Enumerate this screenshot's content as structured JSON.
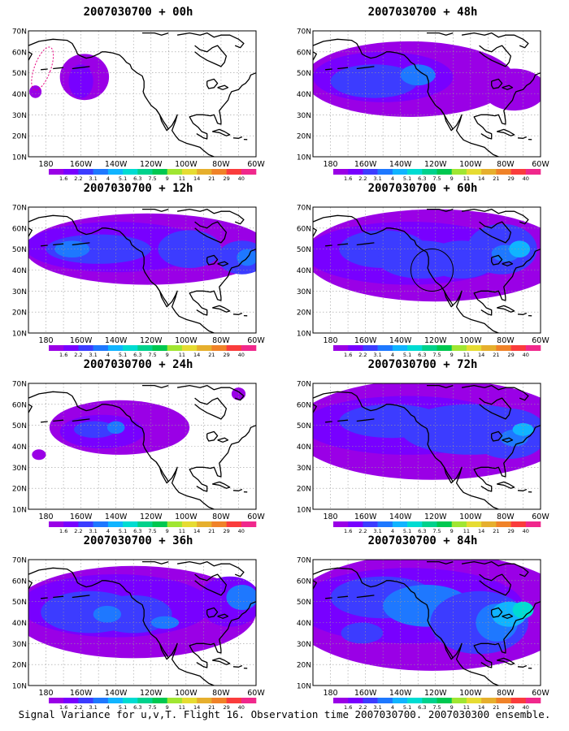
{
  "map": {
    "lat_ticks": [
      "70N",
      "60N",
      "50N",
      "40N",
      "30N",
      "20N",
      "10N"
    ],
    "lon_ticks": [
      "180",
      "160W",
      "140W",
      "120W",
      "100W",
      "80W",
      "60W"
    ],
    "colorbar": {
      "labels": [
        "1.6",
        "2.2",
        "3.1",
        "4",
        "5.1",
        "6.3",
        "7.5",
        "9",
        "11",
        "14",
        "21",
        "29",
        "40"
      ],
      "colors": [
        "#9a00e6",
        "#7800ff",
        "#3c3cff",
        "#1e78ff",
        "#10b4ff",
        "#00dcd2",
        "#00d28c",
        "#00c850",
        "#a0e632",
        "#e6dc32",
        "#e6af2d",
        "#f08228",
        "#fa3c3c",
        "#f0288c"
      ]
    },
    "land_fill": "#ffffff",
    "grid_style": "dotted"
  },
  "panels": [
    {
      "title": "2007030700 + 00h",
      "col": 0,
      "row": 0,
      "level": 0
    },
    {
      "title": "2007030700 + 48h",
      "col": 1,
      "row": 0,
      "level": 4
    },
    {
      "title": "2007030700 + 12h",
      "col": 0,
      "row": 1,
      "level": 1
    },
    {
      "title": "2007030700 + 60h",
      "col": 1,
      "row": 1,
      "level": 5
    },
    {
      "title": "2007030700 + 24h",
      "col": 0,
      "row": 2,
      "level": 2
    },
    {
      "title": "2007030700 + 72h",
      "col": 1,
      "row": 2,
      "level": 6
    },
    {
      "title": "2007030700 + 36h",
      "col": 0,
      "row": 3,
      "level": 3
    },
    {
      "title": "2007030700 + 84h",
      "col": 1,
      "row": 3,
      "level": 7
    }
  ],
  "footer": "Signal Variance for u,v,T. Flight 16. Observation time 2007030700. 2007030300 ensemble."
}
